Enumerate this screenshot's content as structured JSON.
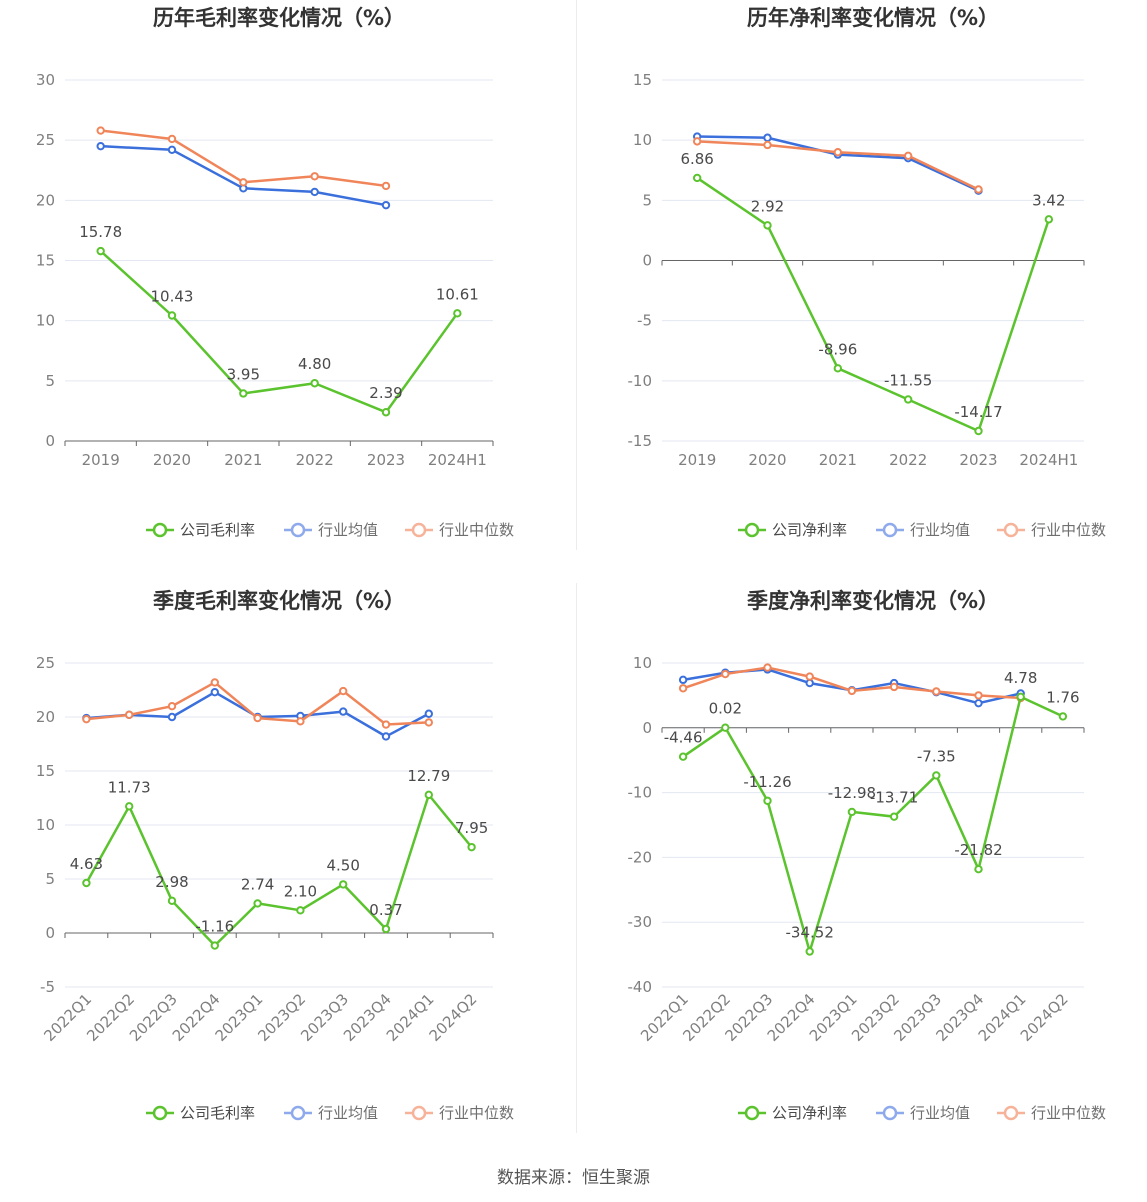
{
  "colors": {
    "company": "#5ac32d",
    "industry_avg": "#3a6fdc",
    "industry_median": "#f0855a",
    "legend_avg_muted": "#8eaaec",
    "legend_median_muted": "#f6b399",
    "grid": "#e3e7f1",
    "axis": "#666666"
  },
  "chart_data": [
    {
      "type": "line",
      "title": "历年毛利率变化情况（%）",
      "categories": [
        "2019",
        "2020",
        "2021",
        "2022",
        "2023",
        "2024H1"
      ],
      "ylim": [
        0,
        30
      ],
      "yticks": [
        0,
        5,
        10,
        15,
        20,
        25,
        30
      ],
      "ytick_labels": [
        "0",
        "5",
        "10",
        "15",
        "20",
        "25",
        "30"
      ],
      "grid": true,
      "legend_position": "bottom",
      "series": [
        {
          "name": "公司毛利率",
          "values": [
            15.78,
            10.43,
            3.95,
            4.8,
            2.39,
            10.61
          ],
          "labels": [
            "15.78",
            "10.43",
            "3.95",
            "4.80",
            "2.39",
            "10.61"
          ]
        },
        {
          "name": "行业均值",
          "values": [
            24.5,
            24.2,
            21.0,
            20.7,
            19.6,
            null
          ]
        },
        {
          "name": "行业中位数",
          "values": [
            25.8,
            25.1,
            21.5,
            22.0,
            21.2,
            null
          ]
        }
      ]
    },
    {
      "type": "line",
      "title": "历年净利率变化情况（%）",
      "categories": [
        "2019",
        "2020",
        "2021",
        "2022",
        "2023",
        "2024H1"
      ],
      "ylim": [
        -15,
        15
      ],
      "yticks": [
        -15,
        -10,
        -5,
        0,
        5,
        10,
        15
      ],
      "ytick_labels": [
        "-15",
        "-10",
        "-5",
        "0",
        "5",
        "10",
        "15"
      ],
      "grid": true,
      "legend_position": "bottom",
      "series": [
        {
          "name": "公司净利率",
          "values": [
            6.86,
            2.92,
            -8.96,
            -11.55,
            -14.17,
            3.42
          ],
          "labels": [
            "6.86",
            "2.92",
            "-8.96",
            "-11.55",
            "-14.17",
            "3.42"
          ]
        },
        {
          "name": "行业均值",
          "values": [
            10.3,
            10.2,
            8.8,
            8.5,
            5.8,
            null
          ]
        },
        {
          "name": "行业中位数",
          "values": [
            9.9,
            9.6,
            9.0,
            8.7,
            5.9,
            null
          ]
        }
      ]
    },
    {
      "type": "line",
      "title": "季度毛利率变化情况（%）",
      "categories": [
        "2022Q1",
        "2022Q2",
        "2022Q3",
        "2022Q4",
        "2023Q1",
        "2023Q2",
        "2023Q3",
        "2023Q4",
        "2024Q1",
        "2024Q2"
      ],
      "ylim": [
        -5,
        25
      ],
      "yticks": [
        -5,
        0,
        5,
        10,
        15,
        20,
        25
      ],
      "ytick_labels": [
        "-5",
        "0",
        "5",
        "10",
        "15",
        "20",
        "25"
      ],
      "grid": true,
      "legend_position": "bottom",
      "series": [
        {
          "name": "公司毛利率",
          "values": [
            4.63,
            11.73,
            2.98,
            -1.16,
            2.74,
            2.1,
            4.5,
            0.37,
            12.79,
            7.95
          ],
          "labels": [
            "4.63",
            "11.73",
            "2.98",
            "-1.16",
            "2.74",
            "2.10",
            "4.50",
            "0.37",
            "12.79",
            "7.95"
          ]
        },
        {
          "name": "行业均值",
          "values": [
            19.9,
            20.2,
            20.0,
            22.3,
            20.0,
            20.1,
            20.5,
            18.2,
            20.3,
            null
          ]
        },
        {
          "name": "行业中位数",
          "values": [
            19.8,
            20.2,
            21.0,
            23.2,
            19.9,
            19.6,
            22.4,
            19.3,
            19.5,
            null
          ]
        }
      ]
    },
    {
      "type": "line",
      "title": "季度净利率变化情况（%）",
      "categories": [
        "2022Q1",
        "2022Q2",
        "2022Q3",
        "2022Q4",
        "2023Q1",
        "2023Q2",
        "2023Q3",
        "2023Q4",
        "2024Q1",
        "2024Q2"
      ],
      "ylim": [
        -40,
        10
      ],
      "yticks": [
        -40,
        -30,
        -20,
        -10,
        0,
        10
      ],
      "ytick_labels": [
        "-40",
        "-30",
        "-20",
        "-10",
        "0",
        "10"
      ],
      "grid": true,
      "legend_position": "bottom",
      "series": [
        {
          "name": "公司净利率",
          "values": [
            -4.46,
            0.02,
            -11.26,
            -34.52,
            -12.98,
            -13.71,
            -7.35,
            -21.82,
            4.78,
            1.76
          ],
          "labels": [
            "-4.46",
            "0.02",
            "-11.26",
            "-34.52",
            "-12.98",
            "-13.71",
            "-7.35",
            "-21.82",
            "4.78",
            "1.76"
          ]
        },
        {
          "name": "行业均值",
          "values": [
            7.4,
            8.5,
            9.0,
            6.9,
            5.8,
            6.9,
            5.5,
            3.8,
            5.3,
            null
          ]
        },
        {
          "name": "行业中位数",
          "values": [
            6.1,
            8.3,
            9.3,
            7.9,
            5.7,
            6.3,
            5.6,
            5.0,
            4.6,
            null
          ]
        }
      ]
    }
  ],
  "source_note": "数据来源：恒生聚源"
}
